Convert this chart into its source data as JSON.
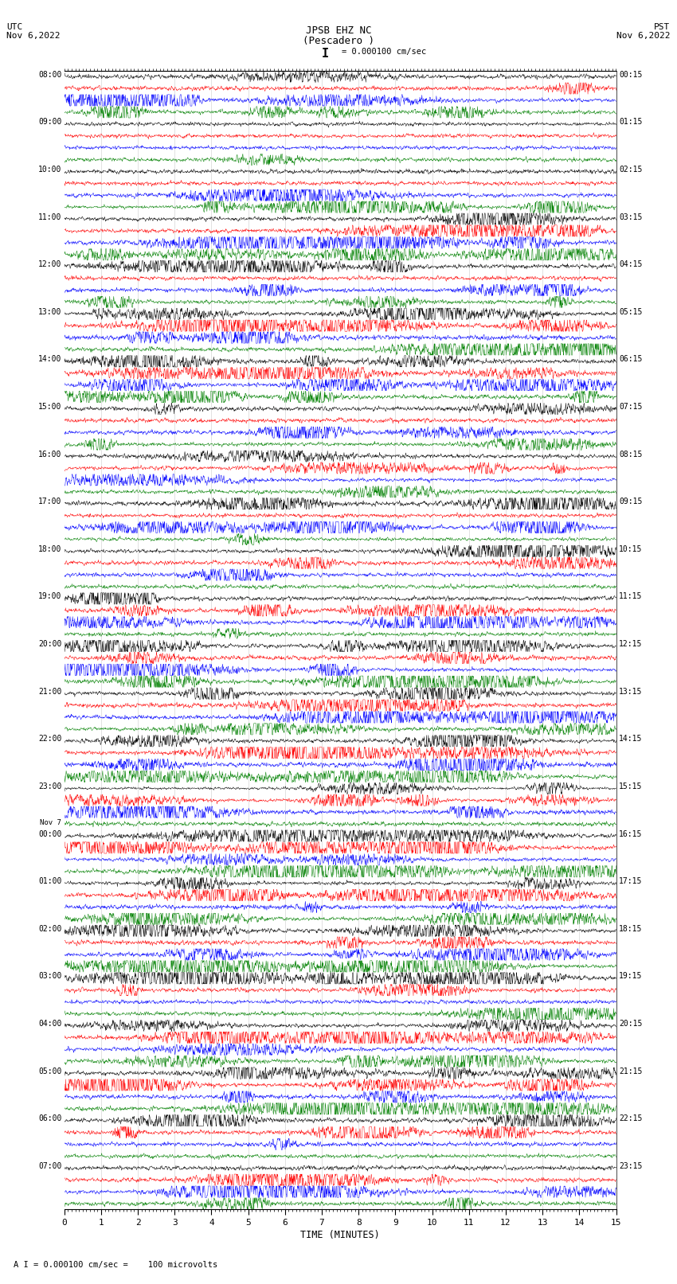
{
  "title_line1": "JPSB EHZ NC",
  "title_line2": "(Pescadero )",
  "title_scale": "I = 0.000100 cm/sec",
  "left_header_line1": "UTC",
  "left_header_line2": "Nov 6,2022",
  "right_header_line1": "PST",
  "right_header_line2": "Nov 6,2022",
  "xlabel": "TIME (MINUTES)",
  "footer": "A I = 0.000100 cm/sec =    100 microvolts",
  "n_hours": 24,
  "traces_per_hour": 4,
  "colors_cycle": [
    "black",
    "red",
    "blue",
    "green"
  ],
  "xlim": [
    0,
    15
  ],
  "x_ticks": [
    0,
    1,
    2,
    3,
    4,
    5,
    6,
    7,
    8,
    9,
    10,
    11,
    12,
    13,
    14,
    15
  ],
  "fig_width": 8.5,
  "fig_height": 16.13,
  "dpi": 100,
  "left_hour_labels": [
    "08:00",
    "09:00",
    "10:00",
    "11:00",
    "12:00",
    "13:00",
    "14:00",
    "15:00",
    "16:00",
    "17:00",
    "18:00",
    "19:00",
    "20:00",
    "21:00",
    "22:00",
    "23:00",
    "Nov 7\n00:00",
    "01:00",
    "02:00",
    "03:00",
    "04:00",
    "05:00",
    "06:00",
    "07:00"
  ],
  "right_hour_labels": [
    "00:15",
    "01:15",
    "02:15",
    "03:15",
    "04:15",
    "05:15",
    "06:15",
    "07:15",
    "08:15",
    "09:15",
    "10:15",
    "11:15",
    "12:15",
    "13:15",
    "14:15",
    "15:15",
    "16:15",
    "17:15",
    "18:15",
    "19:15",
    "20:15",
    "21:15",
    "22:15",
    "23:15"
  ],
  "trace_amplitude": 0.28,
  "trace_linewidth": 0.35,
  "bg_color": "white",
  "n_points": 1800
}
